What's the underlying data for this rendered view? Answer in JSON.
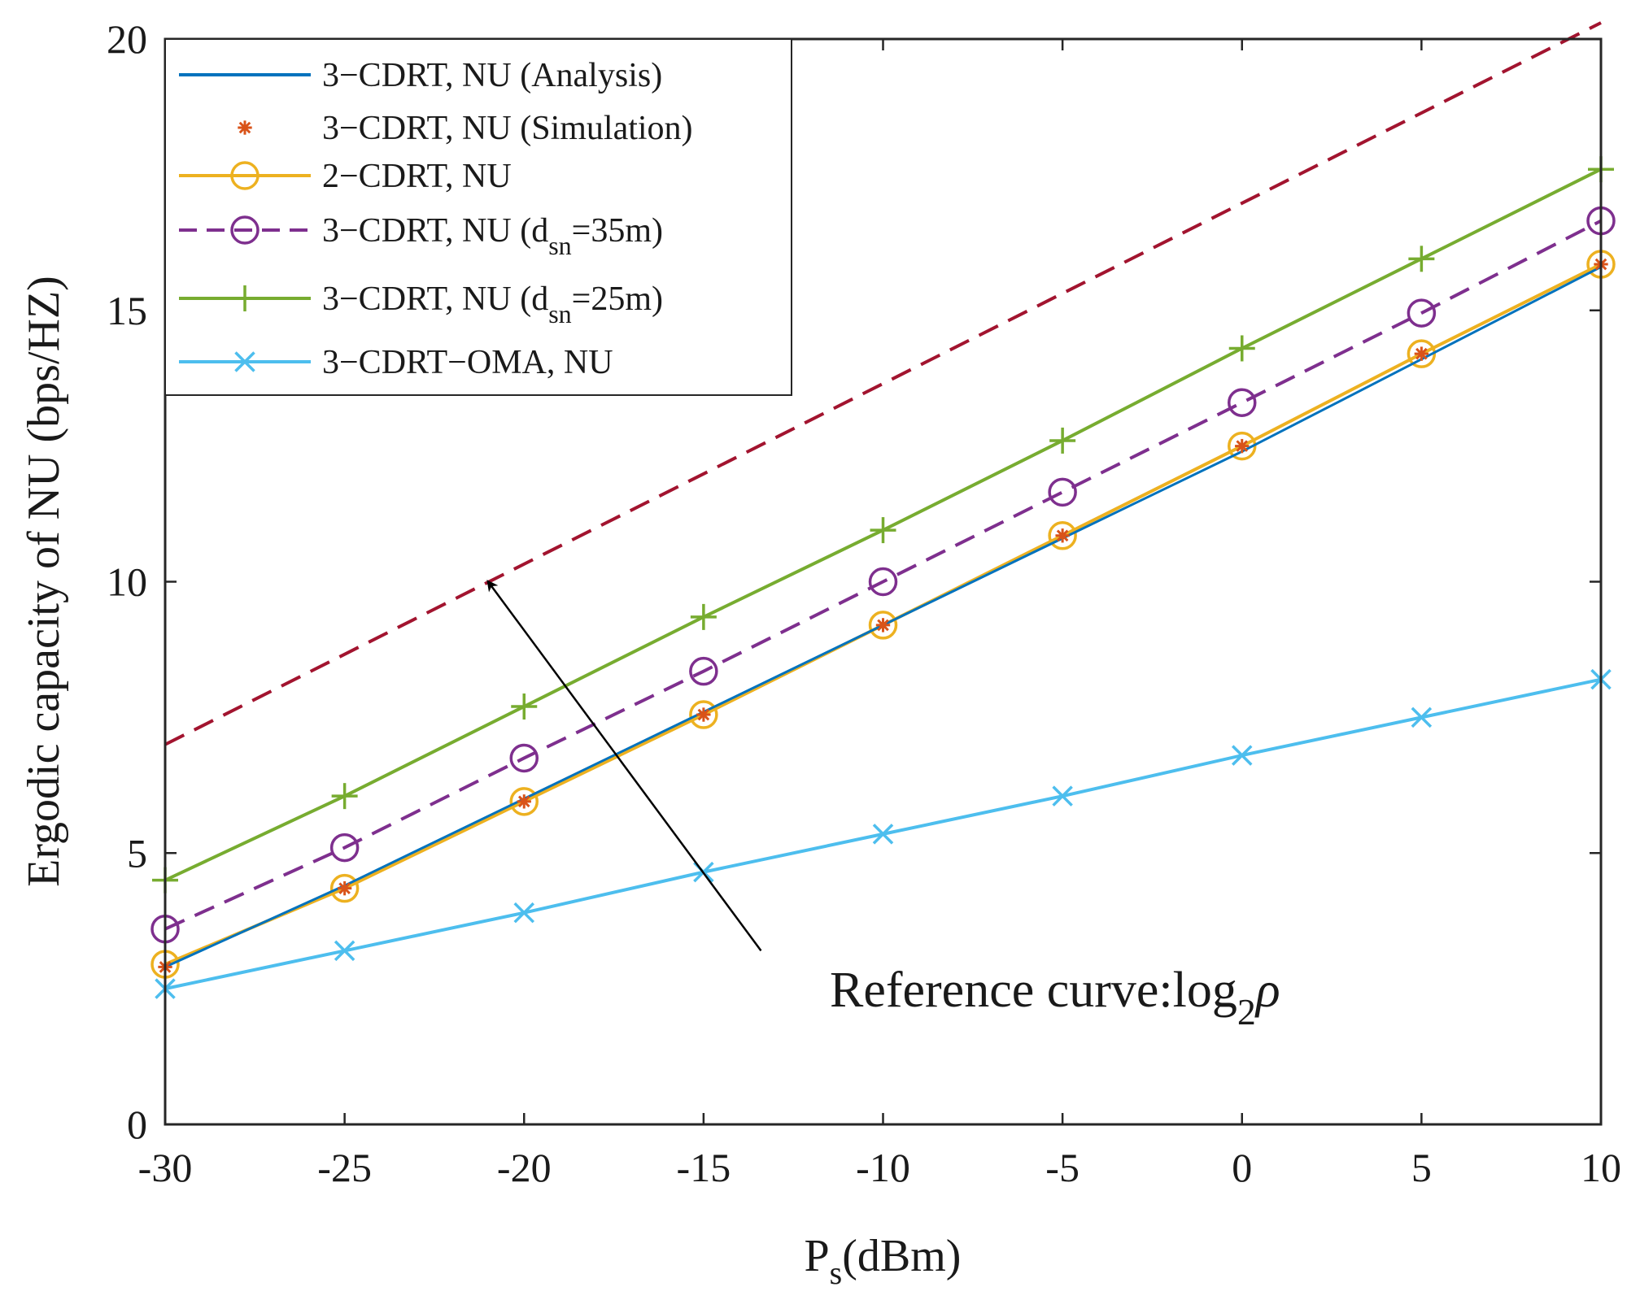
{
  "chart_data": {
    "type": "line",
    "title": "",
    "xlabel": {
      "main": "P",
      "sub": "s",
      "rest": "(dBm)"
    },
    "ylabel": "Ergodic capacity of NU (bps/HZ)",
    "xlim": [
      -30,
      10
    ],
    "ylim": [
      0,
      20
    ],
    "xticks": [
      -30,
      -25,
      -20,
      -15,
      -10,
      -5,
      0,
      5,
      10
    ],
    "yticks": [
      0,
      5,
      10,
      15,
      20
    ],
    "x": [
      -30,
      -25,
      -20,
      -15,
      -10,
      -5,
      0,
      5,
      10
    ],
    "grid": false,
    "legend_position": "top-left",
    "series": [
      {
        "id": "analysis",
        "name": "3−CDRT, NU  (Analysis)",
        "color": "#0072BD",
        "dash": "solid",
        "marker": "none",
        "values": [
          2.9,
          4.4,
          6.0,
          7.6,
          9.2,
          10.8,
          12.4,
          14.1,
          15.8
        ]
      },
      {
        "id": "simulation",
        "name": "3−CDRT, NU  (Simulation)",
        "color": "#D95319",
        "dash": "none",
        "marker": "asterisk",
        "values": [
          2.9,
          4.35,
          5.95,
          7.55,
          9.2,
          10.85,
          12.5,
          14.2,
          15.85
        ]
      },
      {
        "id": "twocdrt",
        "name": "2−CDRT, NU",
        "color": "#EDB120",
        "dash": "solid",
        "marker": "circle",
        "values": [
          2.95,
          4.35,
          5.95,
          7.55,
          9.2,
          10.85,
          12.5,
          14.2,
          15.85
        ]
      },
      {
        "id": "dsn35",
        "name_main": "3−CDRT, NU (d",
        "name_sub": "sn",
        "name_rest": "=35m)",
        "color": "#7E2F8E",
        "dash": "dash",
        "marker": "circle",
        "values": [
          3.6,
          5.1,
          6.75,
          8.35,
          10.0,
          11.65,
          13.3,
          14.95,
          16.65
        ]
      },
      {
        "id": "dsn25",
        "name_main": "3−CDRT, NU (d",
        "name_sub": "sn",
        "name_rest": "=25m)",
        "color": "#77AC30",
        "dash": "solid",
        "marker": "plus",
        "values": [
          4.5,
          6.05,
          7.7,
          9.35,
          10.95,
          12.6,
          14.3,
          15.95,
          17.6
        ]
      },
      {
        "id": "oma",
        "name": "3−CDRT−OMA, NU",
        "color": "#4DBEEE",
        "dash": "solid",
        "marker": "x",
        "values": [
          2.5,
          3.2,
          3.9,
          4.65,
          5.35,
          6.05,
          6.8,
          7.5,
          8.2
        ]
      }
    ],
    "reference_curve": {
      "color": "#A2142F",
      "dash": "dash",
      "x": [
        -30,
        10
      ],
      "values": [
        7.0,
        20.3
      ]
    },
    "annotation": {
      "text_main": "Reference curve:log",
      "text_sub": "2",
      "text_rest": "ρ",
      "arrow_to": [
        -21,
        10.0
      ],
      "arrow_from": [
        -13.4,
        3.2
      ]
    }
  }
}
